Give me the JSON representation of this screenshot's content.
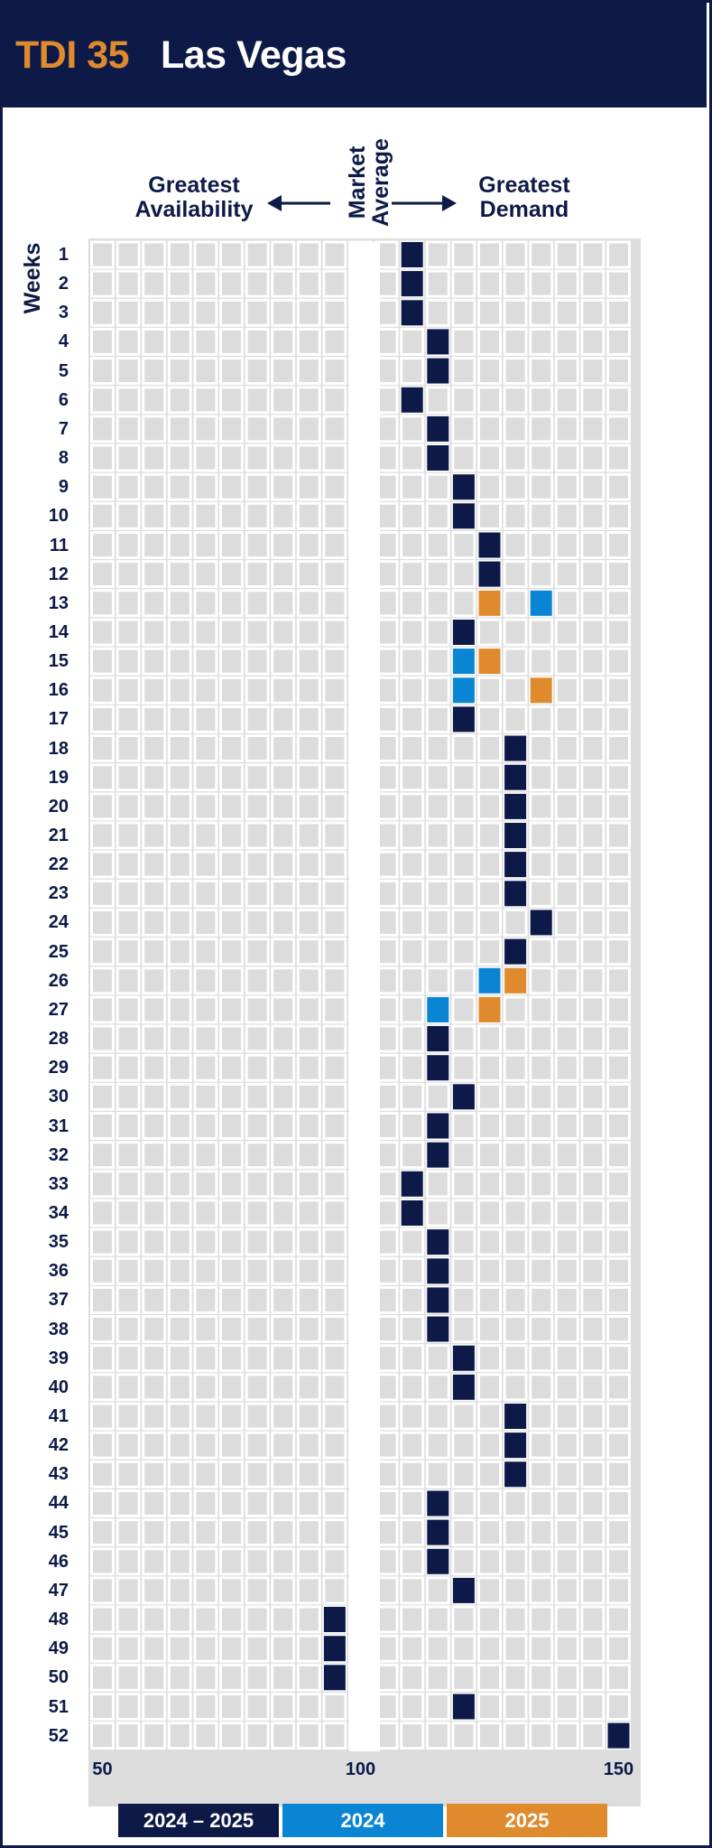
{
  "header": {
    "code": "TDI 35",
    "city": "Las Vegas"
  },
  "labels": {
    "left": [
      "Greatest",
      "Availability"
    ],
    "middle": [
      "Market",
      "Average"
    ],
    "right": [
      "Greatest",
      "Demand"
    ],
    "yaxis": "Weeks"
  },
  "colors": {
    "navy": "#0d1a48",
    "blue": "#0a85d3",
    "orange": "#e08a2e",
    "cell": "#dcdcdd",
    "panel": "#dcdcdd",
    "white": "#ffffff"
  },
  "legend": [
    {
      "label": "2024 – 2025",
      "color": "#0d1a48"
    },
    {
      "label": "2024",
      "color": "#0a85d3"
    },
    {
      "label": "2025",
      "color": "#e08a2e"
    }
  ],
  "chart_data": {
    "type": "heatmap",
    "title": "",
    "xlabel": "",
    "ylabel": "Weeks",
    "xlim": [
      50,
      150
    ],
    "xticks": [
      50,
      100,
      150
    ],
    "market_average": 100,
    "weeks": [
      1,
      2,
      3,
      4,
      5,
      6,
      7,
      8,
      9,
      10,
      11,
      12,
      13,
      14,
      15,
      16,
      17,
      18,
      19,
      20,
      21,
      22,
      23,
      24,
      25,
      26,
      27,
      28,
      29,
      30,
      31,
      32,
      33,
      34,
      35,
      36,
      37,
      38,
      39,
      40,
      41,
      42,
      43,
      44,
      45,
      46,
      47,
      48,
      49,
      50,
      51,
      52
    ],
    "series": [
      {
        "name": "2024 – 2025",
        "color": "#0d1a48",
        "points": [
          [
            1,
            110
          ],
          [
            2,
            110
          ],
          [
            3,
            110
          ],
          [
            4,
            115
          ],
          [
            5,
            115
          ],
          [
            6,
            110
          ],
          [
            7,
            115
          ],
          [
            8,
            115
          ],
          [
            9,
            120
          ],
          [
            10,
            120
          ],
          [
            11,
            125
          ],
          [
            12,
            125
          ],
          [
            14,
            120
          ],
          [
            17,
            120
          ],
          [
            18,
            130
          ],
          [
            19,
            130
          ],
          [
            20,
            130
          ],
          [
            21,
            130
          ],
          [
            22,
            130
          ],
          [
            23,
            130
          ],
          [
            24,
            135
          ],
          [
            25,
            130
          ],
          [
            28,
            115
          ],
          [
            29,
            115
          ],
          [
            30,
            120
          ],
          [
            31,
            115
          ],
          [
            32,
            115
          ],
          [
            33,
            110
          ],
          [
            34,
            110
          ],
          [
            35,
            115
          ],
          [
            36,
            115
          ],
          [
            37,
            115
          ],
          [
            38,
            115
          ],
          [
            39,
            120
          ],
          [
            40,
            120
          ],
          [
            41,
            130
          ],
          [
            42,
            130
          ],
          [
            43,
            130
          ],
          [
            44,
            115
          ],
          [
            45,
            115
          ],
          [
            46,
            115
          ],
          [
            47,
            120
          ],
          [
            48,
            95
          ],
          [
            49,
            95
          ],
          [
            50,
            95
          ],
          [
            51,
            120
          ],
          [
            52,
            150
          ]
        ]
      },
      {
        "name": "2024",
        "color": "#0a85d3",
        "points": [
          [
            13,
            135
          ],
          [
            15,
            120
          ],
          [
            16,
            120
          ],
          [
            26,
            125
          ],
          [
            27,
            115
          ]
        ]
      },
      {
        "name": "2025",
        "color": "#e08a2e",
        "points": [
          [
            13,
            125
          ],
          [
            15,
            125
          ],
          [
            16,
            135
          ],
          [
            26,
            130
          ],
          [
            27,
            125
          ]
        ]
      }
    ]
  }
}
